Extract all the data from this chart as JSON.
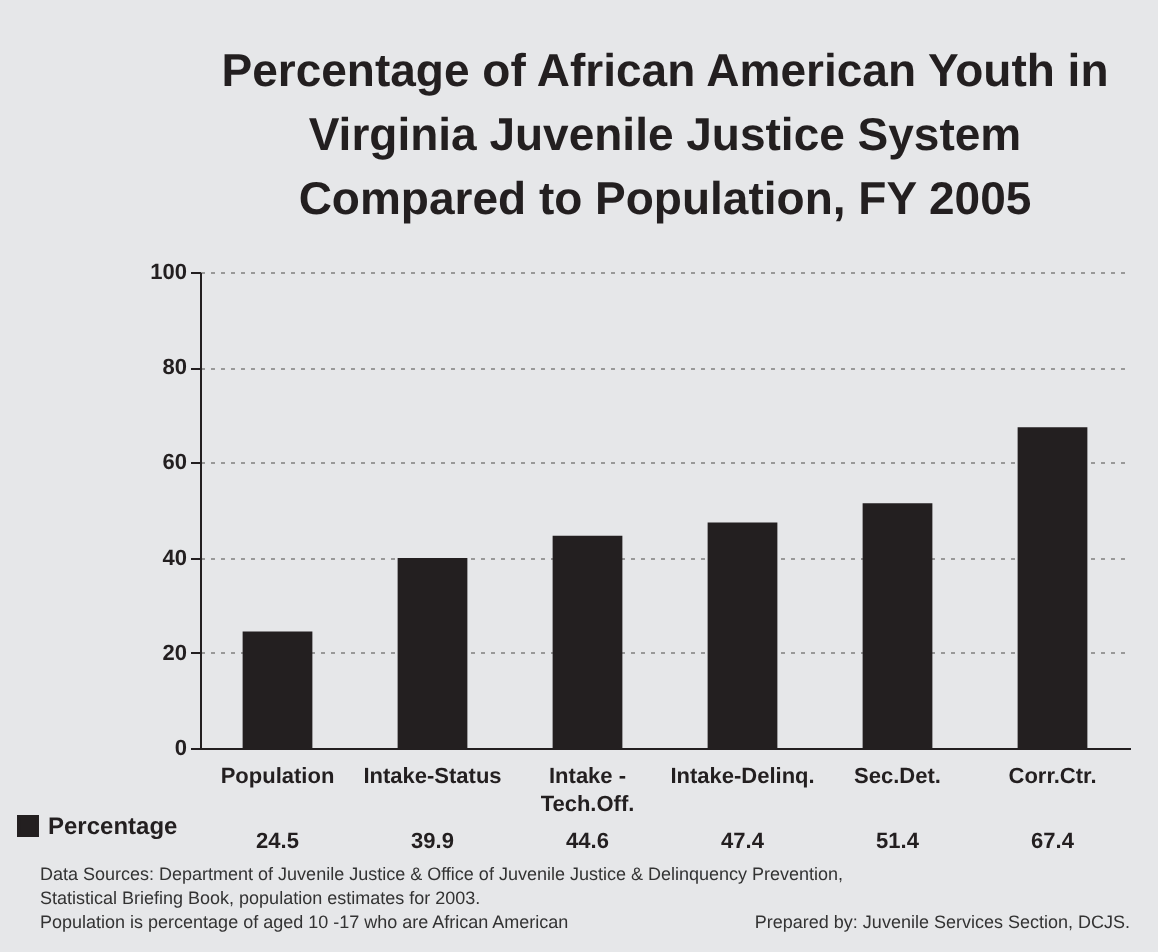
{
  "chart_data": {
    "type": "bar",
    "title": "Percentage of African American Youth in Virginia Juvenile Justice System Compared to Population, FY 2005",
    "categories": [
      "Population",
      "Intake-Status",
      "Intake - Tech.Off.",
      "Intake-Delinq.",
      "Sec.Det.",
      "Corr.Ctr."
    ],
    "series": [
      {
        "name": "Percentage",
        "color": "#231f20",
        "values": [
          24.5,
          39.9,
          44.6,
          47.4,
          51.4,
          67.4
        ]
      }
    ],
    "ylim": [
      0,
      100
    ],
    "yticks": [
      0,
      20,
      40,
      60,
      80,
      100
    ],
    "grid": "y",
    "data_labels": true,
    "legend": "bottom left",
    "annotations": [
      "Data Sources: Department of Juvenile Justice & Office of Juvenile Justice & Delinquency Prevention,",
      "Statistical Briefing Book, population estimates for 2003.",
      "Population is percentage of aged 10 -17 who are African American",
      "Prepared by: Juvenile Services Section, DCJS."
    ]
  }
}
